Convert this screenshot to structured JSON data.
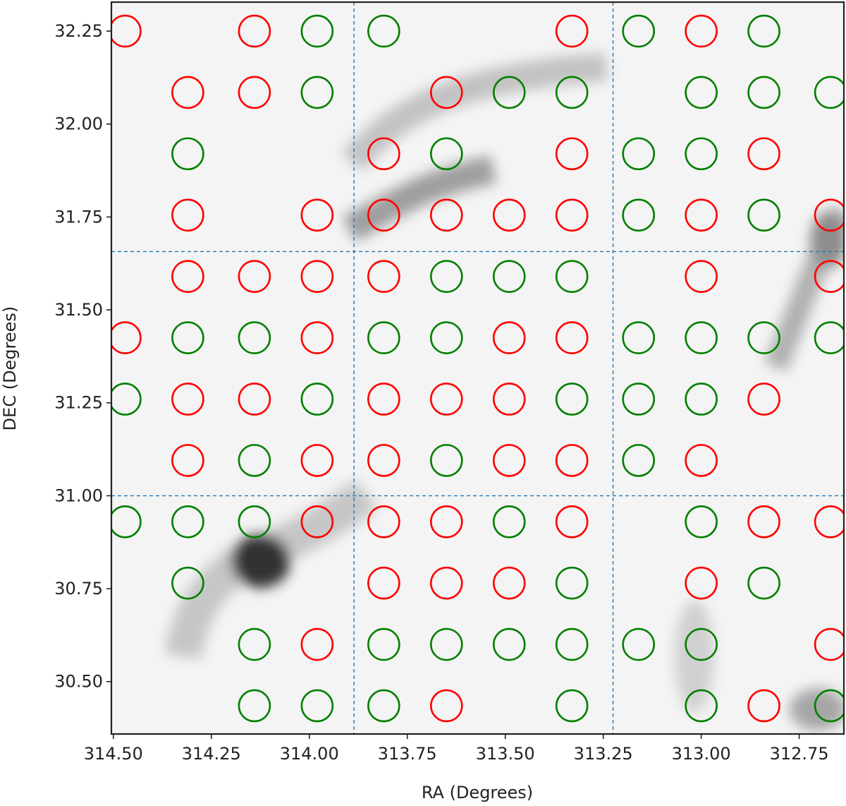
{
  "chart_data": {
    "type": "scatter",
    "title": "",
    "xlabel": "RA (Degrees)",
    "ylabel": "DEC (Degrees)",
    "x_inverted": true,
    "xlim": [
      314.505,
      312.636
    ],
    "ylim": [
      30.359,
      32.328
    ],
    "xticks": [
      314.5,
      314.25,
      314.0,
      313.75,
      313.5,
      313.25,
      313.0,
      312.75
    ],
    "xtick_labels": [
      "314.50",
      "314.25",
      "314.00",
      "313.75",
      "313.50",
      "313.25",
      "313.00",
      "312.75"
    ],
    "yticks": [
      30.5,
      30.75,
      31.0,
      31.25,
      31.5,
      31.75,
      32.0,
      32.25
    ],
    "ytick_labels": [
      "30.50",
      "30.75",
      "31.00",
      "31.25",
      "31.50",
      "31.75",
      "32.00",
      "32.25"
    ],
    "grid_lines": {
      "ra": [
        313.886,
        313.225
      ],
      "dec": [
        31.0,
        31.657
      ],
      "color": "#1f77b4",
      "style": "dashed"
    },
    "background": "grayscale intensity map with dark filaments",
    "colors": {
      "red": "#ff0000",
      "green": "#008000"
    },
    "ra_grid": [
      314.47,
      314.31,
      314.14,
      313.98,
      313.81,
      313.65,
      313.49,
      313.33,
      313.16,
      313.0,
      312.84,
      312.67
    ],
    "dec_grid": [
      32.25,
      32.085,
      31.92,
      31.755,
      31.59,
      31.425,
      31.26,
      31.095,
      30.93,
      30.765,
      30.6,
      30.435
    ],
    "markers": [
      [
        "R",
        "",
        "R",
        "G",
        "G",
        "",
        "",
        "R",
        "G",
        "R",
        "G",
        ""
      ],
      [
        "",
        "R",
        "R",
        "G",
        "",
        "R",
        "G",
        "G",
        "",
        "G",
        "G",
        "G"
      ],
      [
        "",
        "G",
        "",
        "",
        "R",
        "G",
        "",
        "R",
        "G",
        "G",
        "R",
        ""
      ],
      [
        "",
        "R",
        "",
        "R",
        "R",
        "R",
        "R",
        "R",
        "G",
        "R",
        "G",
        "R"
      ],
      [
        "",
        "R",
        "R",
        "R",
        "R",
        "G",
        "G",
        "G",
        "",
        "R",
        "",
        "R"
      ],
      [
        "R",
        "G",
        "G",
        "R",
        "G",
        "G",
        "R",
        "R",
        "G",
        "G",
        "G",
        "G"
      ],
      [
        "G",
        "R",
        "R",
        "G",
        "R",
        "R",
        "R",
        "G",
        "G",
        "G",
        "R",
        ""
      ],
      [
        "",
        "R",
        "G",
        "R",
        "R",
        "G",
        "R",
        "R",
        "G",
        "R",
        "",
        ""
      ],
      [
        "G",
        "G",
        "G",
        "R",
        "R",
        "R",
        "G",
        "R",
        "",
        "G",
        "R",
        "R"
      ],
      [
        "",
        "G",
        "",
        "",
        "R",
        "R",
        "R",
        "G",
        "",
        "R",
        "G",
        ""
      ],
      [
        "",
        "",
        "G",
        "R",
        "G",
        "G",
        "G",
        "G",
        "G",
        "G",
        "",
        "R"
      ],
      [
        "",
        "",
        "G",
        "G",
        "G",
        "R",
        "",
        "G",
        "",
        "G",
        "R",
        "G"
      ]
    ]
  }
}
